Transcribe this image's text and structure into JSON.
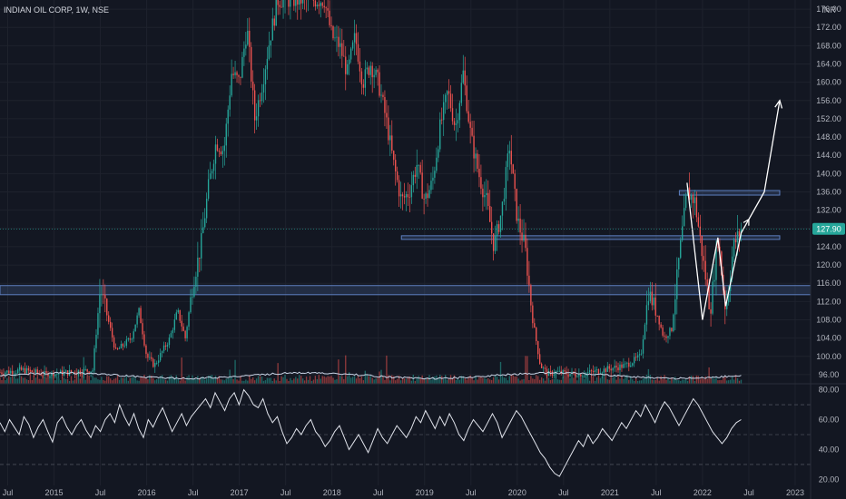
{
  "header": {
    "symbol_title": "INDIAN OIL CORP, 1W, NSE",
    "currency": "INR"
  },
  "colors": {
    "background": "#131722",
    "up": "#26a69a",
    "down": "#ef5350",
    "grid": "#1e222d",
    "axis_text": "#b2b5be",
    "zone": "#5d7fbf",
    "arrow": "#ffffff",
    "rsi_line": "#e0e3eb",
    "ma_line": "#c9d4e6",
    "price_tag": "#26a69a"
  },
  "chart_data": [
    {
      "type": "candlestick",
      "title": "INDIAN OIL CORP, 1W, NSE",
      "ylabel": "INR",
      "ylim": [
        94,
        178
      ],
      "y_ticks": [
        96,
        100,
        104,
        108,
        112,
        116,
        120,
        124,
        128,
        132,
        136,
        140,
        144,
        148,
        152,
        156,
        160,
        164,
        168,
        172,
        176
      ],
      "y_tick_labels": [
        "96.00",
        "100.00",
        "104.00",
        "108.00",
        "112.00",
        "116.00",
        "120.00",
        "124.00",
        "128.00",
        "132.00",
        "136.00",
        "140.00",
        "144.00",
        "148.00",
        "152.00",
        "156.00",
        "160.00",
        "164.00",
        "168.00",
        "172.00",
        "176.00"
      ],
      "x_ticks": [
        "Jul",
        "2015",
        "Jul",
        "2016",
        "Jul",
        "2017",
        "Jul",
        "2018",
        "Jul",
        "2019",
        "Jul",
        "2020",
        "Jul",
        "2021",
        "Jul",
        "2022",
        "Jul",
        "2023"
      ],
      "xlim": [
        "2014-06",
        "2023-03"
      ],
      "last_price": 127.9,
      "last_price_label": "127.90",
      "price_path": [
        [
          "2014-06",
          96.5
        ],
        [
          "2014-09",
          97
        ],
        [
          "2014-12",
          96
        ],
        [
          "2015-03",
          96.5
        ],
        [
          "2015-06",
          97
        ],
        [
          "2015-07",
          115
        ],
        [
          "2015-08",
          108
        ],
        [
          "2015-09",
          101
        ],
        [
          "2015-11",
          104
        ],
        [
          "2015-12",
          110
        ],
        [
          "2016-01",
          100
        ],
        [
          "2016-02",
          98
        ],
        [
          "2016-04",
          104
        ],
        [
          "2016-05",
          110
        ],
        [
          "2016-06",
          104
        ],
        [
          "2016-07",
          116
        ],
        [
          "2016-08",
          124
        ],
        [
          "2016-09",
          137
        ],
        [
          "2016-10",
          147
        ],
        [
          "2016-11",
          145
        ],
        [
          "2016-12",
          162
        ],
        [
          "2017-01",
          160
        ],
        [
          "2017-02",
          172
        ],
        [
          "2017-03",
          152
        ],
        [
          "2017-04",
          160
        ],
        [
          "2017-05",
          170
        ],
        [
          "2017-06",
          178
        ],
        [
          "2017-07",
          178
        ],
        [
          "2017-12",
          178
        ],
        [
          "2018-01",
          170
        ],
        [
          "2018-02",
          168
        ],
        [
          "2018-03",
          162
        ],
        [
          "2018-04",
          170
        ],
        [
          "2018-05",
          160
        ],
        [
          "2018-06",
          164
        ],
        [
          "2018-07",
          160
        ],
        [
          "2018-08",
          152
        ],
        [
          "2018-09",
          142
        ],
        [
          "2018-10",
          134
        ],
        [
          "2018-11",
          136
        ],
        [
          "2018-12",
          142
        ],
        [
          "2019-01",
          134
        ],
        [
          "2019-02",
          138
        ],
        [
          "2019-03",
          150
        ],
        [
          "2019-04",
          158
        ],
        [
          "2019-05",
          150
        ],
        [
          "2019-06",
          162
        ],
        [
          "2019-07",
          148
        ],
        [
          "2019-08",
          140
        ],
        [
          "2019-09",
          134
        ],
        [
          "2019-10",
          124
        ],
        [
          "2019-11",
          132
        ],
        [
          "2019-12",
          146
        ],
        [
          "2020-01",
          130
        ],
        [
          "2020-02",
          124
        ],
        [
          "2020-03",
          108
        ],
        [
          "2020-04",
          98
        ],
        [
          "2020-05",
          96
        ],
        [
          "2020-06",
          96.5
        ],
        [
          "2020-09",
          96
        ],
        [
          "2020-12",
          97
        ],
        [
          "2021-03",
          98
        ],
        [
          "2021-05",
          100
        ],
        [
          "2021-06",
          114
        ],
        [
          "2021-07",
          110
        ],
        [
          "2021-08",
          104
        ],
        [
          "2021-09",
          106
        ],
        [
          "2021-10",
          122
        ],
        [
          "2021-11",
          136
        ],
        [
          "2021-12",
          134
        ],
        [
          "2022-01",
          122
        ],
        [
          "2022-02",
          110
        ],
        [
          "2022-03",
          126
        ],
        [
          "2022-04",
          110
        ],
        [
          "2022-05",
          124
        ],
        [
          "2022-06",
          127.9
        ]
      ],
      "zones": [
        {
          "from": 113.5,
          "to": 115.5
        },
        {
          "from": 125.6,
          "to": 126.4,
          "x_start": "2018-10",
          "x_end": "2022-11"
        },
        {
          "from": 135.3,
          "to": 136.3,
          "x_start": "2021-10",
          "x_end": "2022-11"
        }
      ],
      "projection_path": [
        [
          "2021-11",
          138
        ],
        [
          "2022-01",
          108
        ],
        [
          "2022-03",
          126
        ],
        [
          "2022-04",
          111
        ],
        [
          "2022-06",
          127
        ],
        [
          "2022-07",
          130
        ],
        [
          "2022-09",
          136
        ],
        [
          "2022-11",
          156
        ]
      ]
    },
    {
      "type": "line",
      "title": "",
      "ylim": [
        16,
        84
      ],
      "y_ticks": [
        20,
        40,
        60,
        80
      ],
      "y_tick_labels": [
        "20.00",
        "40.00",
        "60.00",
        "80.00"
      ],
      "levels": [
        70,
        50,
        30
      ],
      "series": [
        {
          "values": [
            58,
            52,
            60,
            55,
            50,
            62,
            57,
            48,
            55,
            60,
            52,
            45,
            58,
            62,
            55,
            50,
            56,
            60,
            53,
            48,
            56,
            52,
            60,
            64,
            58,
            70,
            62,
            56,
            64,
            54,
            48,
            60,
            55,
            62,
            68,
            60,
            52,
            58,
            64,
            56,
            62,
            66,
            70,
            74,
            68,
            78,
            72,
            66,
            74,
            78,
            70,
            80,
            76,
            70,
            68,
            74,
            64,
            58,
            62,
            52,
            44,
            48,
            54,
            50,
            56,
            60,
            52,
            48,
            42,
            46,
            52,
            56,
            48,
            40,
            45,
            50,
            44,
            38,
            46,
            54,
            48,
            44,
            50,
            56,
            52,
            48,
            54,
            62,
            58,
            66,
            60,
            54,
            62,
            56,
            64,
            58,
            50,
            46,
            54,
            60,
            56,
            52,
            58,
            64,
            58,
            48,
            54,
            60,
            66,
            62,
            56,
            50,
            44,
            38,
            34,
            28,
            24,
            22,
            28,
            34,
            40,
            46,
            42,
            50,
            44,
            48,
            54,
            50,
            46,
            52,
            58,
            54,
            60,
            66,
            62,
            70,
            64,
            58,
            66,
            72,
            68,
            62,
            56,
            62,
            68,
            74,
            70,
            64,
            58,
            52,
            48,
            44,
            48,
            54,
            58,
            60
          ]
        }
      ]
    }
  ]
}
